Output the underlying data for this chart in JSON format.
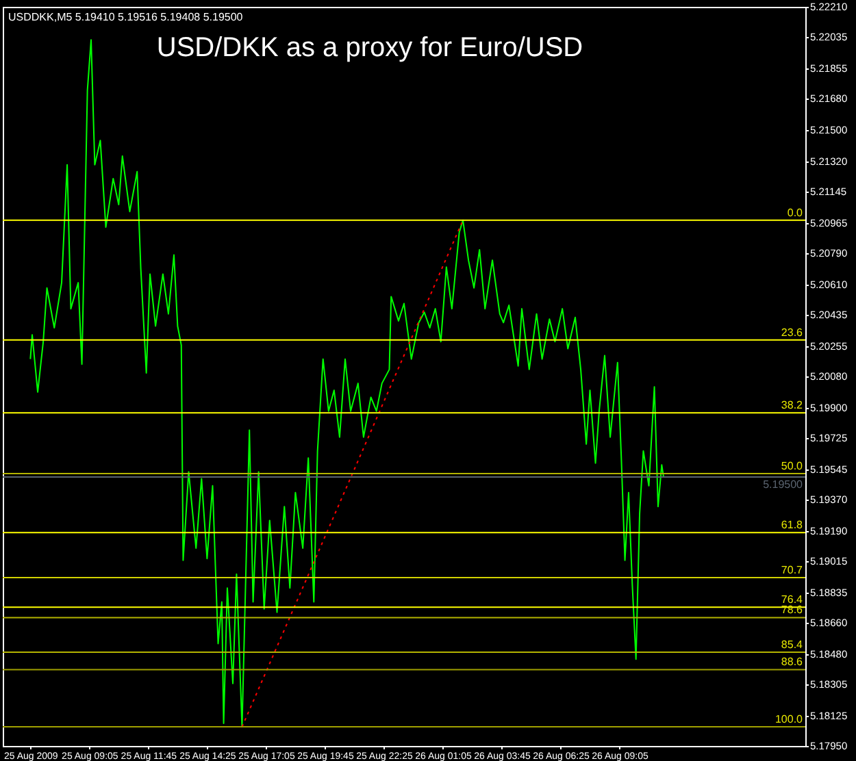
{
  "chart_data": {
    "type": "line",
    "title": "USD/DKK as a proxy for Euro/USD",
    "annotations": [
      "USDDKK,M5  5.19410 5.19516 5.19408 5.19500",
      {
        "text": "0.0",
        "y": 5.2098
      },
      {
        "text": "23.6",
        "y": 5.2029
      },
      {
        "text": "38.2",
        "y": 5.1987
      },
      {
        "text": "50.0",
        "y": 5.1952
      },
      {
        "text": "61.8",
        "y": 5.1918
      },
      {
        "text": "70.7",
        "y": 5.1892
      },
      {
        "text": "76.4",
        "y": 5.1875
      },
      {
        "text": "78.6",
        "y": 5.1869
      },
      {
        "text": "85.4",
        "y": 5.1849
      },
      {
        "text": "88.6",
        "y": 5.1839
      },
      {
        "text": "100.0",
        "y": 5.1806
      }
    ],
    "xlim": [
      "2009-08-25T05:10",
      "2009-08-26T17:30"
    ],
    "xticks": [
      {
        "value": "2009-08-25T06:25",
        "label": "25 Aug 2009"
      },
      {
        "value": "2009-08-25T09:05",
        "label": "25 Aug 09:05"
      },
      {
        "value": "2009-08-25T11:45",
        "label": "25 Aug 11:45"
      },
      {
        "value": "2009-08-25T14:25",
        "label": "25 Aug 14:25"
      },
      {
        "value": "2009-08-25T17:05",
        "label": "25 Aug 17:05"
      },
      {
        "value": "2009-08-25T19:45",
        "label": "25 Aug 19:45"
      },
      {
        "value": "2009-08-25T22:25",
        "label": "25 Aug 22:25"
      },
      {
        "value": "2009-08-26T01:05",
        "label": "26 Aug 01:05"
      },
      {
        "value": "2009-08-26T03:45",
        "label": "26 Aug 03:45"
      },
      {
        "value": "2009-08-26T06:25",
        "label": "26 Aug 06:25"
      },
      {
        "value": "2009-08-26T09:05",
        "label": "26 Aug 09:05"
      }
    ],
    "ylim": [
      5.1795,
      5.2221
    ],
    "yticks": [
      {
        "value": 5.2221,
        "label": "5.22210"
      },
      {
        "value": 5.22035,
        "label": "5.22035"
      },
      {
        "value": 5.21855,
        "label": "5.21855"
      },
      {
        "value": 5.2168,
        "label": "5.21680"
      },
      {
        "value": 5.215,
        "label": "5.21500"
      },
      {
        "value": 5.2132,
        "label": "5.21320"
      },
      {
        "value": 5.21145,
        "label": "5.21145"
      },
      {
        "value": 5.20965,
        "label": "5.20965"
      },
      {
        "value": 5.2079,
        "label": "5.20790"
      },
      {
        "value": 5.2061,
        "label": "5.20610"
      },
      {
        "value": 5.20435,
        "label": "5.20435"
      },
      {
        "value": 5.20255,
        "label": "5.20255"
      },
      {
        "value": 5.2008,
        "label": "5.20080"
      },
      {
        "value": 5.199,
        "label": "5.19900"
      },
      {
        "value": 5.19725,
        "label": "5.19725"
      },
      {
        "value": 5.19545,
        "label": "5.19545"
      },
      {
        "value": 5.1937,
        "label": "5.19370"
      },
      {
        "value": 5.1919,
        "label": "5.19190"
      },
      {
        "value": 5.19015,
        "label": "5.19015"
      },
      {
        "value": 5.18835,
        "label": "5.18835"
      },
      {
        "value": 5.1866,
        "label": "5.18660"
      },
      {
        "value": 5.1848,
        "label": "5.18480"
      },
      {
        "value": 5.18305,
        "label": "5.18305"
      },
      {
        "value": 5.18125,
        "label": "5.18125"
      },
      {
        "value": 5.1795,
        "label": "5.17950"
      }
    ],
    "series": [
      {
        "color": "#00ff00",
        "x": [
          "2009-08-25T06:25",
          "2009-08-25T06:30",
          "2009-08-25T06:45",
          "2009-08-25T07:00",
          "2009-08-25T07:10",
          "2009-08-25T07:30",
          "2009-08-25T07:50",
          "2009-08-25T08:05",
          "2009-08-25T08:15",
          "2009-08-25T08:35",
          "2009-08-25T08:45",
          "2009-08-25T09:00",
          "2009-08-25T09:10",
          "2009-08-25T09:20",
          "2009-08-25T09:35",
          "2009-08-25T09:50",
          "2009-08-25T10:10",
          "2009-08-25T10:25",
          "2009-08-25T10:35",
          "2009-08-25T10:55",
          "2009-08-25T11:15",
          "2009-08-25T11:25",
          "2009-08-25T11:40",
          "2009-08-25T11:50",
          "2009-08-25T12:05",
          "2009-08-25T12:25",
          "2009-08-25T12:40",
          "2009-08-25T12:55",
          "2009-08-25T13:05",
          "2009-08-25T13:15",
          "2009-08-25T13:20",
          "2009-08-25T13:35",
          "2009-08-25T13:55",
          "2009-08-25T14:10",
          "2009-08-25T14:25",
          "2009-08-25T14:40",
          "2009-08-25T14:55",
          "2009-08-25T15:05",
          "2009-08-25T15:10",
          "2009-08-25T15:20",
          "2009-08-25T15:35",
          "2009-08-25T15:45",
          "2009-08-25T16:00",
          "2009-08-25T16:20",
          "2009-08-25T16:30",
          "2009-08-25T16:45",
          "2009-08-25T17:00",
          "2009-08-25T17:15",
          "2009-08-25T17:35",
          "2009-08-25T17:55",
          "2009-08-25T18:10",
          "2009-08-25T18:25",
          "2009-08-25T18:45",
          "2009-08-25T19:00",
          "2009-08-25T19:15",
          "2009-08-25T19:25",
          "2009-08-25T19:40",
          "2009-08-25T19:55",
          "2009-08-25T20:10",
          "2009-08-25T20:25",
          "2009-08-25T20:40",
          "2009-08-25T20:55",
          "2009-08-25T21:15",
          "2009-08-25T21:30",
          "2009-08-25T21:50",
          "2009-08-25T22:05",
          "2009-08-25T22:20",
          "2009-08-25T22:40",
          "2009-08-25T22:45",
          "2009-08-25T23:05",
          "2009-08-25T23:20",
          "2009-08-25T23:40",
          "2009-08-26T00:00",
          "2009-08-26T00:15",
          "2009-08-26T00:30",
          "2009-08-26T00:45",
          "2009-08-26T01:00",
          "2009-08-26T01:15",
          "2009-08-26T01:30",
          "2009-08-26T01:50",
          "2009-08-26T02:00",
          "2009-08-26T02:15",
          "2009-08-26T02:30",
          "2009-08-26T02:45",
          "2009-08-26T03:00",
          "2009-08-26T03:20",
          "2009-08-26T03:40",
          "2009-08-26T03:50",
          "2009-08-26T04:05",
          "2009-08-26T04:30",
          "2009-08-26T04:40",
          "2009-08-26T05:00",
          "2009-08-26T05:20",
          "2009-08-26T05:35",
          "2009-08-26T05:55",
          "2009-08-26T06:10",
          "2009-08-26T06:30",
          "2009-08-26T06:45",
          "2009-08-26T07:05",
          "2009-08-26T07:20",
          "2009-08-26T07:35",
          "2009-08-26T07:45",
          "2009-08-26T08:00",
          "2009-08-26T08:10",
          "2009-08-26T08:25",
          "2009-08-26T08:40",
          "2009-08-26T09:00",
          "2009-08-26T09:10",
          "2009-08-26T09:20",
          "2009-08-26T09:30",
          "2009-08-26T09:40",
          "2009-08-26T09:50",
          "2009-08-26T10:00",
          "2009-08-26T10:10",
          "2009-08-26T10:25",
          "2009-08-26T10:40",
          "2009-08-26T10:50",
          "2009-08-26T11:00",
          "2009-08-26T11:05"
        ],
        "values": [
          5.2018,
          5.2032,
          5.1999,
          5.2028,
          5.2059,
          5.2036,
          5.2062,
          5.213,
          5.2047,
          5.2062,
          5.2015,
          5.2173,
          5.2202,
          5.213,
          5.2144,
          5.2094,
          5.2122,
          5.2107,
          5.2135,
          5.2103,
          5.2126,
          5.207,
          5.201,
          5.2067,
          5.2037,
          5.2067,
          5.2044,
          5.2078,
          5.2037,
          5.2026,
          5.1902,
          5.1953,
          5.1909,
          5.1949,
          5.1903,
          5.1945,
          5.1854,
          5.1878,
          5.1808,
          5.1886,
          5.1831,
          5.1894,
          5.1806,
          5.1977,
          5.1878,
          5.1953,
          5.1874,
          5.1925,
          5.1872,
          5.1933,
          5.1886,
          5.1941,
          5.1909,
          5.1961,
          5.1878,
          5.1965,
          5.2018,
          5.1988,
          5.2,
          5.1973,
          5.2018,
          5.1988,
          5.2004,
          5.1973,
          5.1996,
          5.1988,
          5.2004,
          5.2012,
          5.2054,
          5.204,
          5.205,
          5.2018,
          5.2039,
          5.2045,
          5.2036,
          5.2047,
          5.2028,
          5.2071,
          5.2047,
          5.2091,
          5.2098,
          5.2075,
          5.2059,
          5.2081,
          5.2047,
          5.2075,
          5.2044,
          5.2039,
          5.2049,
          5.2014,
          5.2047,
          5.2012,
          5.2044,
          5.2018,
          5.2041,
          5.2028,
          5.2047,
          5.2024,
          5.2042,
          5.2012,
          5.1969,
          5.2,
          5.1958,
          5.1988,
          5.202,
          5.1973,
          5.2016,
          5.1962,
          5.1902,
          5.1941,
          5.1888,
          5.1845,
          5.1929,
          5.1965,
          5.1945,
          5.2002,
          5.1933,
          5.1957,
          5.195
        ]
      },
      {
        "color": "#ff0000",
        "line_style": "dotted",
        "x": [
          "2009-08-25T16:00",
          "2009-08-26T02:00"
        ],
        "values": [
          5.1806,
          5.2098
        ]
      }
    ],
    "ref_lines": [
      {
        "axis": "y",
        "value": 5.2098,
        "color": "#ffff00"
      },
      {
        "axis": "y",
        "value": 5.2029,
        "color": "#ffff00"
      },
      {
        "axis": "y",
        "value": 5.1987,
        "color": "#ffff00"
      },
      {
        "axis": "y",
        "value": 5.1952,
        "color": "#b4b400"
      },
      {
        "axis": "y",
        "value": 5.195,
        "label": "5.19500",
        "color": "#5a6470"
      },
      {
        "axis": "y",
        "value": 5.1918,
        "color": "#ffff00"
      },
      {
        "axis": "y",
        "value": 5.1892,
        "color": "#d2d200"
      },
      {
        "axis": "y",
        "value": 5.1875,
        "color": "#ffff00"
      },
      {
        "axis": "y",
        "value": 5.1869,
        "color": "#b4b400"
      },
      {
        "axis": "y",
        "value": 5.1849,
        "color": "#b4b400"
      },
      {
        "axis": "y",
        "value": 5.1839,
        "color": "#a0a000"
      },
      {
        "axis": "y",
        "value": 5.1806,
        "color": "#a0a000"
      }
    ],
    "grid": false
  }
}
